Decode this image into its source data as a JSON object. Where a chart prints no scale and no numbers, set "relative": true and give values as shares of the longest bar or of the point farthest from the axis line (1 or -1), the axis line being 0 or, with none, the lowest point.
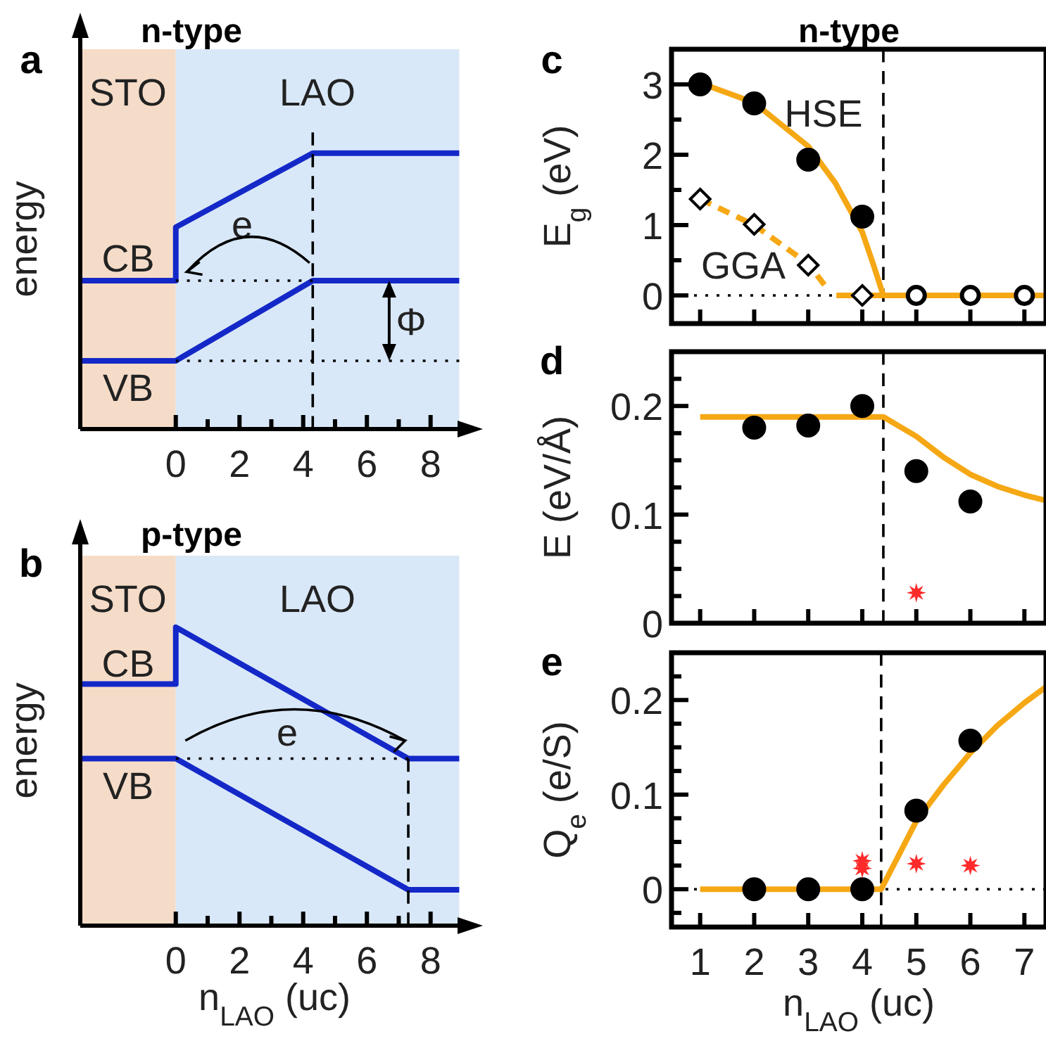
{
  "chart_data": [
    {
      "type": "line",
      "title": "n-type",
      "ylabel": "energy",
      "relative": true,
      "xlim": [
        -3,
        9.2
      ],
      "xticks": [
        0,
        {
          "value": 1,
          "label": null
        },
        2,
        {
          "value": 3,
          "label": null
        },
        4,
        {
          "value": 5,
          "label": null
        },
        6,
        {
          "value": 7,
          "label": null
        },
        8
      ],
      "tick_labels": "x",
      "bands": [
        {
          "axis": "x",
          "from": -3,
          "to": 0,
          "label": "STO",
          "color": "#f5dcc8"
        },
        {
          "axis": "x",
          "from": 0,
          "to": 8.9,
          "label": "LAO",
          "color": "#d9e8f8"
        }
      ],
      "series": [
        {
          "color": "#000000",
          "line_style": "dotted",
          "marker": "none",
          "x": [
            0,
            4.3
          ],
          "values": [
            0.5,
            0.5
          ]
        },
        {
          "color": "#000000",
          "line_style": "dotted",
          "marker": "none",
          "x": [
            0,
            8.9
          ],
          "values": [
            0.23,
            0.23
          ]
        },
        {
          "color": "#000000",
          "line_style": "dashed",
          "marker": "none",
          "x": [
            4.3,
            4.3
          ],
          "values": [
            0,
            1
          ]
        },
        {
          "color": "#1428c8",
          "line_style": "solid",
          "marker": "none",
          "x": [
            -3,
            0,
            0,
            4.3,
            8.9
          ],
          "values": [
            0.5,
            0.5,
            0.68,
            0.93,
            0.93
          ]
        },
        {
          "color": "#1428c8",
          "line_style": "solid",
          "marker": "none",
          "x": [
            -3,
            0,
            4.3,
            8.9
          ],
          "values": [
            0.23,
            0.23,
            0.5,
            0.5
          ]
        }
      ],
      "annotations": [
        "a",
        "CB",
        "VB",
        "e",
        "Φ"
      ]
    },
    {
      "type": "line",
      "title": "p-type",
      "ylabel": "energy",
      "xlabel": "n$_{LAO}$ (uc)",
      "relative": true,
      "xlim": [
        -3,
        9.2
      ],
      "xticks": [
        0,
        {
          "value": 1,
          "label": null
        },
        2,
        {
          "value": 3,
          "label": null
        },
        4,
        {
          "value": 5,
          "label": null
        },
        6,
        {
          "value": 7,
          "label": null
        },
        8
      ],
      "tick_labels": "x",
      "bands": [
        {
          "axis": "x",
          "from": -3,
          "to": 0,
          "label": "STO",
          "color": "#f5dcc8"
        },
        {
          "axis": "x",
          "from": 0,
          "to": 8.9,
          "label": "LAO",
          "color": "#d9e8f8"
        }
      ],
      "series": [
        {
          "color": "#000000",
          "line_style": "dotted",
          "marker": "none",
          "x": [
            0,
            7.3
          ],
          "values": [
            0.56,
            0.56
          ]
        },
        {
          "color": "#000000",
          "line_style": "dashed",
          "marker": "none",
          "x": [
            7.3,
            7.3
          ],
          "values": [
            0,
            0.56
          ]
        },
        {
          "color": "#1428c8",
          "line_style": "solid",
          "marker": "none",
          "x": [
            -3,
            0,
            0,
            7.3,
            8.9
          ],
          "values": [
            0.81,
            0.81,
            1,
            0.56,
            0.56
          ]
        },
        {
          "color": "#1428c8",
          "line_style": "solid",
          "marker": "none",
          "x": [
            -3,
            0,
            7.3,
            8.9
          ],
          "values": [
            0.56,
            0.56,
            0.12,
            0.12
          ]
        }
      ],
      "annotations": [
        "b",
        "CB",
        "VB",
        "e"
      ]
    },
    {
      "type": "scatter",
      "title": "n-type",
      "ylabel": "E$_{g}$ (eV)",
      "xlim": [
        0.47,
        7.4
      ],
      "ylim": [
        -0.4,
        3.5
      ],
      "xticks": [
        1,
        2,
        3,
        4,
        5,
        6,
        7
      ],
      "yticks": [
        0,
        {
          "value": 0.5,
          "label": null
        },
        1,
        {
          "value": 1.5,
          "label": null
        },
        2,
        {
          "value": 2.5,
          "label": null
        },
        3
      ],
      "tick_labels": "y",
      "ref_lines": [
        {
          "axis": "y",
          "value": 0,
          "color": "#000000",
          "line_style": "dotted"
        },
        {
          "axis": "x",
          "value": 4.39,
          "color": "#000000",
          "line_style": "dashed"
        }
      ],
      "series": [
        {
          "type": "line",
          "color": "#f5a814",
          "line_style": "solid",
          "marker": "none",
          "x": [
            1,
            2,
            3,
            3.5,
            4,
            4.2,
            4.39,
            7.4
          ],
          "values": [
            3.02,
            2.74,
            2.12,
            1.6,
            0.9,
            0.45,
            0,
            0
          ]
        },
        {
          "type": "line",
          "color": "#f5a814",
          "line_style": "dashed",
          "marker": "none",
          "x": [
            1,
            2,
            3,
            3.3
          ],
          "values": [
            1.37,
            1.0,
            0.45,
            0.15
          ]
        },
        {
          "type": "line",
          "color": "#f5a814",
          "line_style": "solid",
          "marker": "none",
          "x": [
            3.52,
            4.39
          ],
          "values": [
            0,
            0
          ]
        },
        {
          "color": "#000000",
          "marker": "circle",
          "x": [
            1,
            2,
            3,
            4
          ],
          "values": [
            3.0,
            2.73,
            1.93,
            1.12
          ]
        },
        {
          "color": "#ffffff",
          "marker": "circle",
          "x": [
            5,
            6,
            7
          ],
          "values": [
            0,
            0,
            0
          ]
        },
        {
          "color": "#ffffff",
          "marker": "diamond",
          "x": [
            1,
            2,
            3,
            4
          ],
          "values": [
            1.37,
            1.01,
            0.43,
            0
          ]
        }
      ],
      "annotations": [
        "c",
        "HSE",
        "GGA"
      ]
    },
    {
      "type": "scatter",
      "ylabel": "E (eV/Å)",
      "xlim": [
        0.47,
        7.4
      ],
      "ylim": [
        0,
        0.25
      ],
      "xticks": [
        1,
        2,
        3,
        4,
        5,
        6,
        7
      ],
      "yticks": [
        0,
        {
          "value": 0.025,
          "label": null
        },
        {
          "value": 0.05,
          "label": null
        },
        {
          "value": 0.075,
          "label": null
        },
        0.1,
        {
          "value": 0.125,
          "label": null
        },
        {
          "value": 0.15,
          "label": null
        },
        {
          "value": 0.175,
          "label": null
        },
        0.2,
        {
          "value": 0.225,
          "label": null
        }
      ],
      "tick_labels": "y",
      "ref_lines": [
        {
          "axis": "x",
          "value": 4.39,
          "color": "#000000",
          "line_style": "dashed"
        }
      ],
      "series": [
        {
          "type": "line",
          "color": "#f5a814",
          "line_style": "solid",
          "marker": "none",
          "x": [
            1,
            4.39,
            5,
            5.5,
            6,
            6.5,
            7,
            7.4
          ],
          "values": [
            0.19,
            0.19,
            0.172,
            0.153,
            0.137,
            0.126,
            0.118,
            0.113
          ]
        },
        {
          "color": "#000000",
          "marker": "circle",
          "x": [
            2,
            3,
            4,
            5,
            6
          ],
          "values": [
            0.18,
            0.182,
            0.2,
            0.14,
            0.112
          ]
        },
        {
          "color": "#ff2a2a",
          "marker": "star",
          "x": [
            5
          ],
          "values": [
            0.028
          ]
        }
      ],
      "annotations": [
        "d"
      ]
    },
    {
      "type": "scatter",
      "ylabel": "Q$_{e}$ (e/S)",
      "xlabel": "n$_{LAO}$ (uc)",
      "xlim": [
        0.47,
        7.4
      ],
      "ylim": [
        -0.04,
        0.25
      ],
      "xticks": [
        1,
        2,
        3,
        4,
        5,
        6,
        7
      ],
      "yticks": [
        {
          "value": -0.025,
          "label": null
        },
        0,
        {
          "value": 0.025,
          "label": null
        },
        {
          "value": 0.05,
          "label": null
        },
        {
          "value": 0.075,
          "label": null
        },
        0.1,
        {
          "value": 0.125,
          "label": null
        },
        {
          "value": 0.15,
          "label": null
        },
        {
          "value": 0.175,
          "label": null
        },
        0.2,
        {
          "value": 0.225,
          "label": null
        }
      ],
      "ref_lines": [
        {
          "axis": "y",
          "value": 0,
          "color": "#000000",
          "line_style": "dotted"
        },
        {
          "axis": "x",
          "value": 4.35,
          "color": "#000000",
          "line_style": "dashed"
        }
      ],
      "series": [
        {
          "type": "line",
          "color": "#f5a814",
          "line_style": "solid",
          "marker": "none",
          "x": [
            1,
            4.35,
            5,
            5.5,
            6,
            6.5,
            7,
            7.4
          ],
          "values": [
            0,
            0,
            0.072,
            0.11,
            0.144,
            0.173,
            0.197,
            0.214
          ]
        },
        {
          "color": "#000000",
          "marker": "circle",
          "x": [
            2,
            3,
            4,
            5,
            6
          ],
          "values": [
            0,
            0,
            0,
            0.083,
            0.157
          ]
        },
        {
          "color": "#ff2a2a",
          "marker": "star",
          "x": [
            4,
            4,
            5,
            6
          ],
          "values": [
            0.022,
            0.03,
            0.027,
            0.025
          ]
        }
      ],
      "annotations": [
        "e"
      ]
    }
  ]
}
